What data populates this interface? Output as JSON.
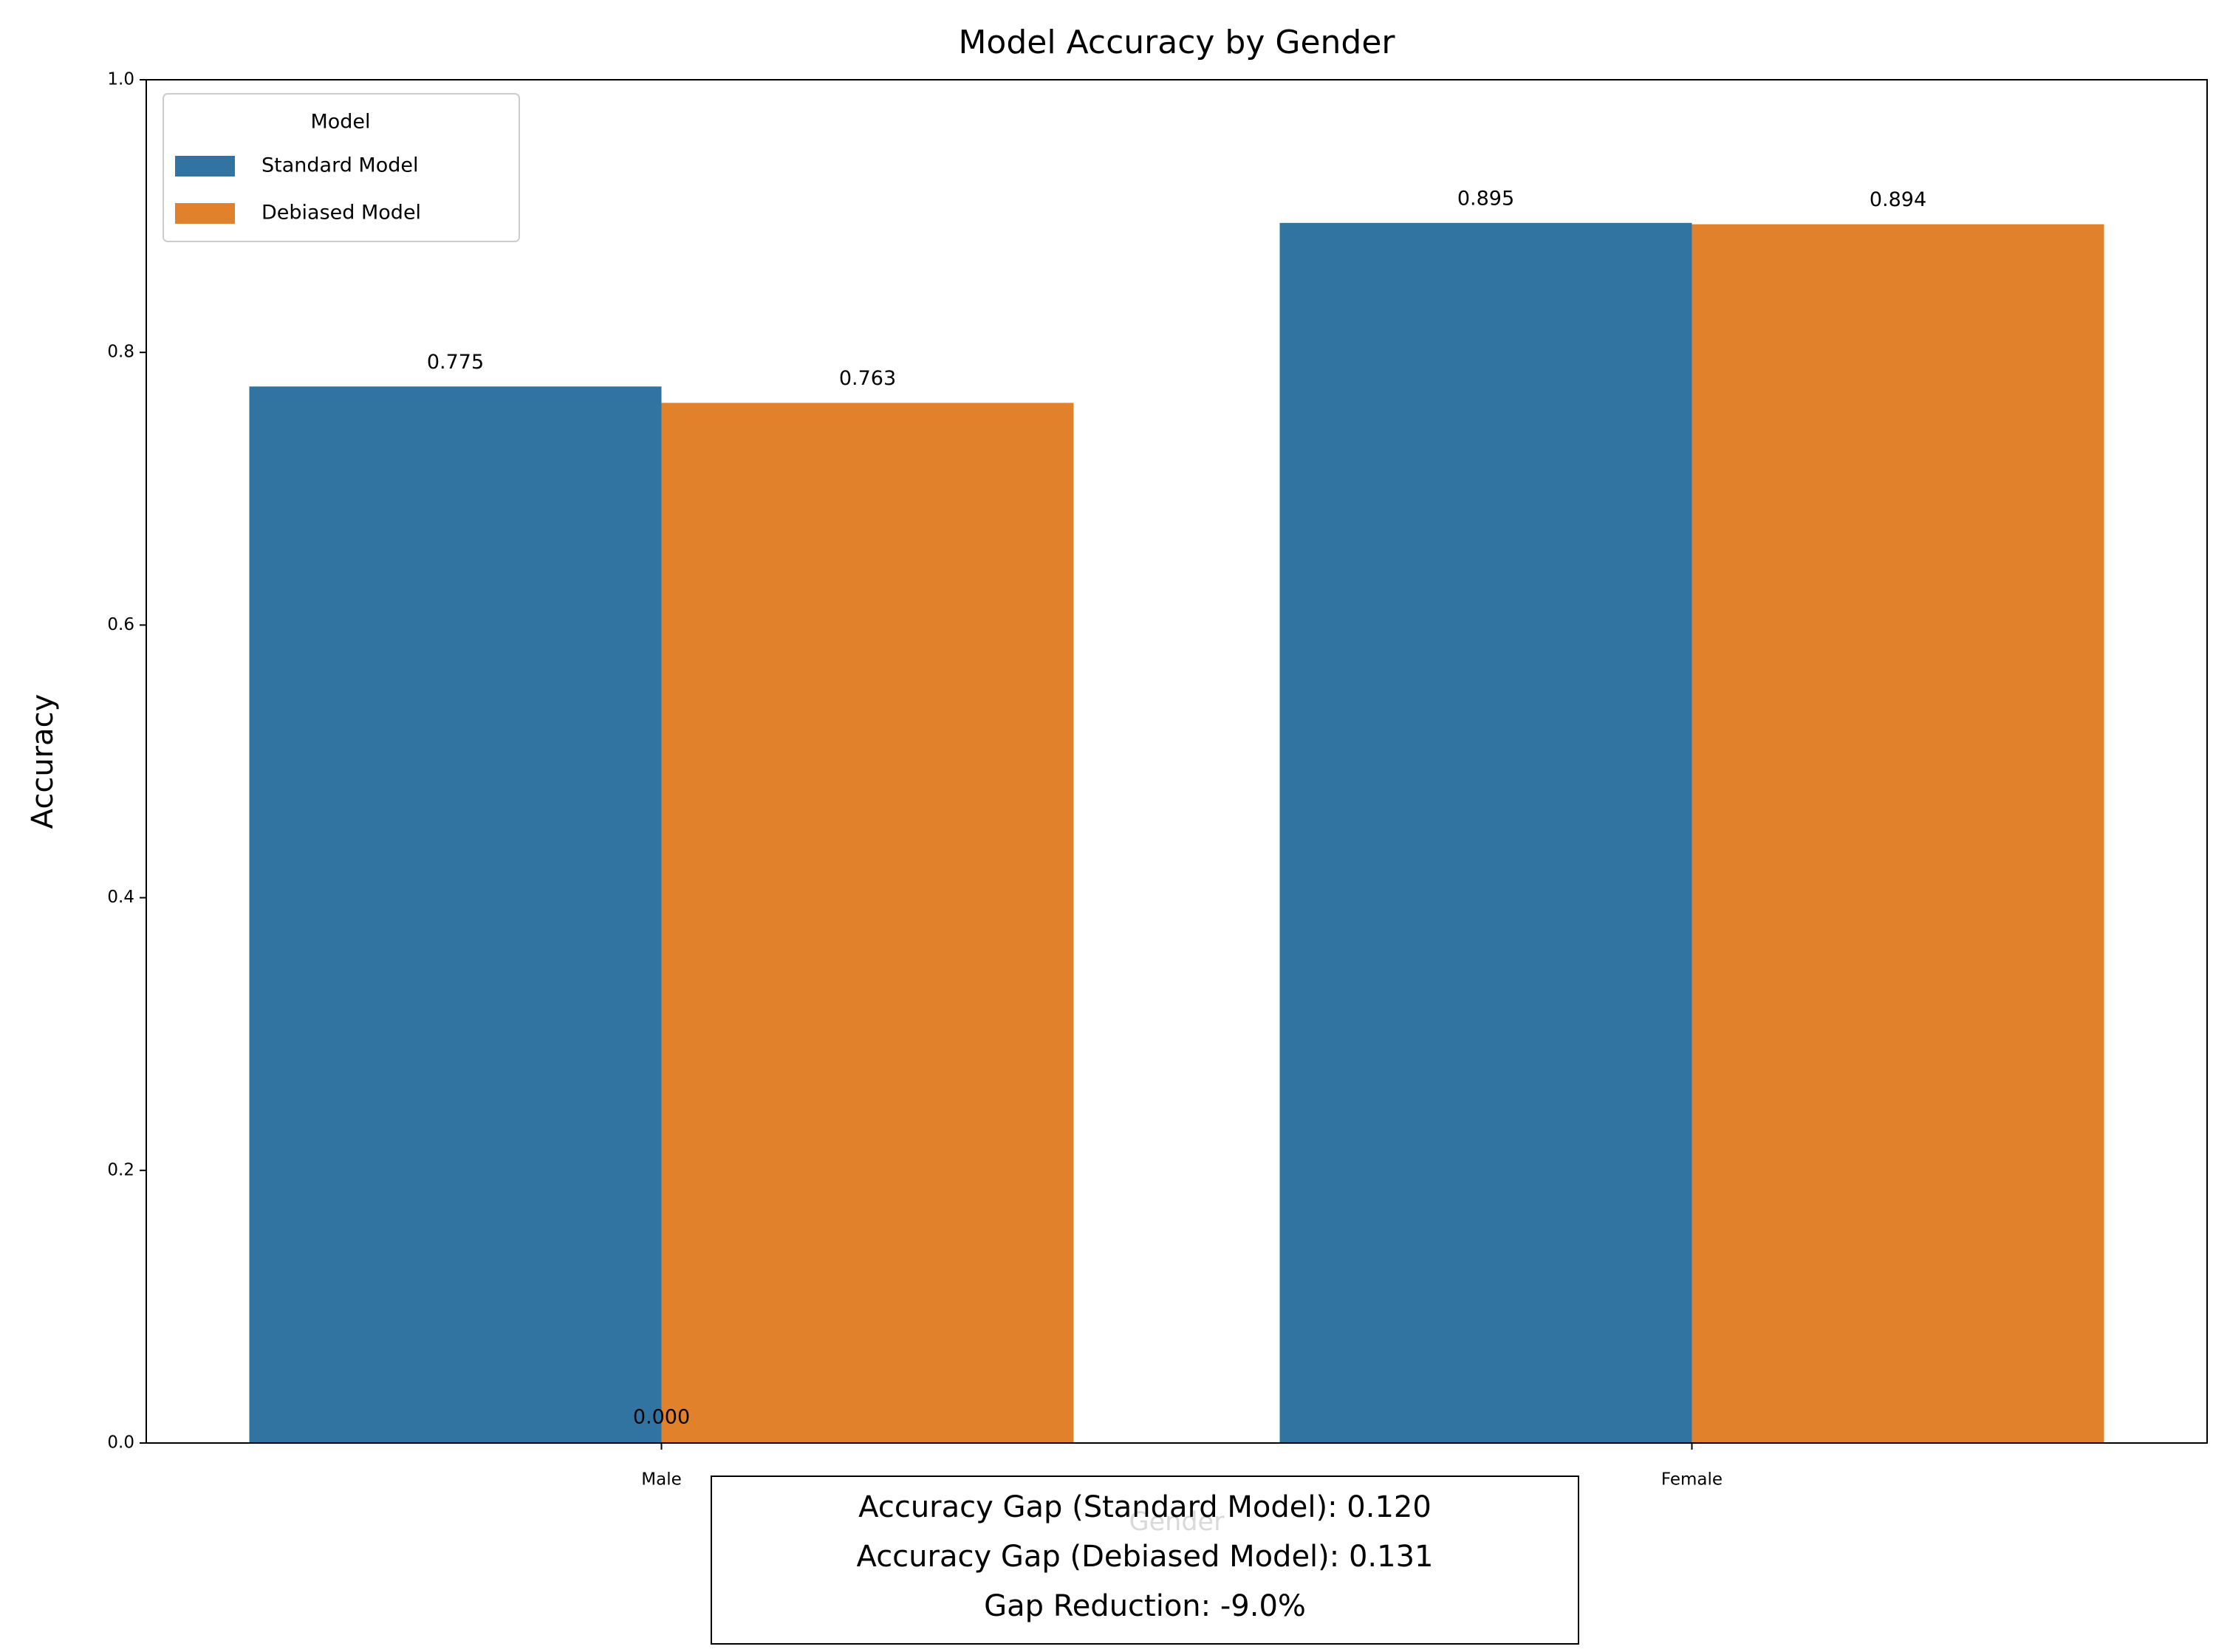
{
  "chart_data": {
    "type": "bar",
    "title": "Model Accuracy by Gender",
    "xlabel": "Gender",
    "ylabel": "Accuracy",
    "categories": [
      "Male",
      "Female"
    ],
    "series": [
      {
        "name": "Standard Model",
        "color": "#3274a1",
        "values": [
          0.775,
          0.895
        ]
      },
      {
        "name": "Debiased Model",
        "color": "#e1812c",
        "values": [
          0.763,
          0.894
        ]
      }
    ],
    "ylim": [
      0,
      1
    ],
    "yticks": [
      {
        "value": 0,
        "label": "0.0"
      },
      0.2,
      0.4,
      0.6,
      0.8,
      {
        "value": 1,
        "label": "1.0"
      }
    ],
    "legend_title": "Model",
    "legend_position": "upper left",
    "annotations": [
      {
        "value": 0,
        "label": "0.000"
      }
    ],
    "text_box": [
      "Accuracy Gap (Standard Model): 0.120",
      "Accuracy Gap (Debiased Model): 0.131",
      "Gap Reduction: -9.0%"
    ]
  }
}
